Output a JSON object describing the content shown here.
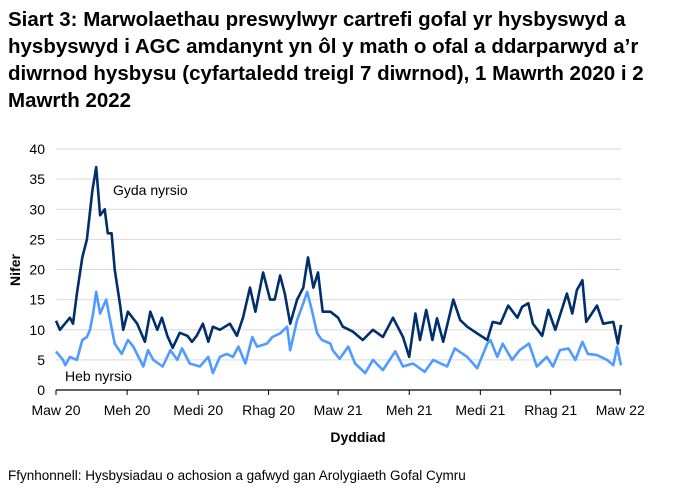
{
  "title": "Siart 3: Marwolaethau preswylwyr cartrefi gofal yr hysbyswyd a hysbyswyd i AGC amdanynt yn ôl y math o ofal a ddarparwyd a’r diwrnod hysbysu (cyfartaledd treigl 7 diwrnod), 1 Mawrth 2020 i 2 Mawrth 2022",
  "source": "Ffynhonnell: Hysbysiadau o achosion a gafwyd gan Arolygiaeth Gofal Cymru",
  "chart_data": {
    "type": "line",
    "title": "Siart 3: Marwolaethau preswylwyr cartrefi gofal yr hysbyswyd a hysbyswyd i AGC amdanynt yn ôl y math o ofal a ddarparwyd a’r diwrnod hysbysu (cyfartaledd treigl 7 diwrnod), 1 Mawrth 2020 i 2 Mawrth 2022",
    "xlabel": "Dyddiad",
    "ylabel": "Nifer",
    "xlim": [
      "2020-03-01",
      "2022-03-02"
    ],
    "ylim": [
      0,
      40
    ],
    "grid": true,
    "legend": "none",
    "yticks": [
      0,
      5,
      10,
      15,
      20,
      25,
      30,
      35,
      40
    ],
    "xticks": [
      {
        "date": "2020-03-01",
        "label": "Maw 20"
      },
      {
        "date": "2020-06-01",
        "label": "Meh 20"
      },
      {
        "date": "2020-09-01",
        "label": "Medi 20"
      },
      {
        "date": "2020-12-01",
        "label": "Rhag 20"
      },
      {
        "date": "2021-03-01",
        "label": "Maw 21"
      },
      {
        "date": "2021-06-01",
        "label": "Meh 21"
      },
      {
        "date": "2021-09-01",
        "label": "Medi 21"
      },
      {
        "date": "2021-12-01",
        "label": "Rhag 21"
      },
      {
        "date": "2022-03-01",
        "label": "Maw 22"
      }
    ],
    "series": [
      {
        "name": "Gyda nyrsio",
        "color": "#002F6C",
        "points": [
          [
            "2020-03-01",
            11.5
          ],
          [
            "2020-03-06",
            10
          ],
          [
            "2020-03-19",
            12
          ],
          [
            "2020-03-23",
            11
          ],
          [
            "2020-03-28",
            16
          ],
          [
            "2020-04-04",
            22
          ],
          [
            "2020-04-10",
            25
          ],
          [
            "2020-04-17",
            33
          ],
          [
            "2020-04-22",
            37
          ],
          [
            "2020-04-27",
            29
          ],
          [
            "2020-05-03",
            30
          ],
          [
            "2020-05-07",
            26
          ],
          [
            "2020-05-12",
            26
          ],
          [
            "2020-05-16",
            20
          ],
          [
            "2020-05-23",
            14
          ],
          [
            "2020-05-27",
            10
          ],
          [
            "2020-06-02",
            13
          ],
          [
            "2020-06-14",
            11
          ],
          [
            "2020-06-24",
            8
          ],
          [
            "2020-07-01",
            13
          ],
          [
            "2020-07-10",
            10
          ],
          [
            "2020-07-16",
            12
          ],
          [
            "2020-07-23",
            9
          ],
          [
            "2020-07-30",
            7
          ],
          [
            "2020-08-08",
            9.5
          ],
          [
            "2020-08-18",
            9
          ],
          [
            "2020-08-24",
            8
          ],
          [
            "2020-08-30",
            9
          ],
          [
            "2020-09-07",
            11
          ],
          [
            "2020-09-14",
            8
          ],
          [
            "2020-09-20",
            10.5
          ],
          [
            "2020-09-29",
            10
          ],
          [
            "2020-10-12",
            11
          ],
          [
            "2020-10-21",
            9
          ],
          [
            "2020-10-29",
            12
          ],
          [
            "2020-11-07",
            17
          ],
          [
            "2020-11-14",
            13
          ],
          [
            "2020-11-24",
            19.5
          ],
          [
            "2020-12-03",
            15
          ],
          [
            "2020-12-09",
            15
          ],
          [
            "2020-12-16",
            19
          ],
          [
            "2020-12-22",
            16
          ],
          [
            "2020-12-29",
            11
          ],
          [
            "2021-01-07",
            15
          ],
          [
            "2021-01-15",
            17
          ],
          [
            "2021-01-21",
            22
          ],
          [
            "2021-01-28",
            17
          ],
          [
            "2021-02-03",
            19.5
          ],
          [
            "2021-02-09",
            13
          ],
          [
            "2021-02-19",
            13
          ],
          [
            "2021-03-01",
            12
          ],
          [
            "2021-03-07",
            10.5
          ],
          [
            "2021-03-20",
            9.7
          ],
          [
            "2021-04-02",
            8.3
          ],
          [
            "2021-04-15",
            10
          ],
          [
            "2021-04-28",
            8.8
          ],
          [
            "2021-05-11",
            12
          ],
          [
            "2021-05-24",
            8.8
          ],
          [
            "2021-06-01",
            5.5
          ],
          [
            "2021-06-09",
            12.7
          ],
          [
            "2021-06-15",
            8.3
          ],
          [
            "2021-06-23",
            13.3
          ],
          [
            "2021-07-01",
            8.3
          ],
          [
            "2021-07-07",
            11.9
          ],
          [
            "2021-07-15",
            8
          ],
          [
            "2021-07-28",
            15
          ],
          [
            "2021-08-06",
            11.6
          ],
          [
            "2021-08-15",
            10.5
          ],
          [
            "2021-08-28",
            9.4
          ],
          [
            "2021-09-10",
            8.3
          ],
          [
            "2021-09-17",
            11.3
          ],
          [
            "2021-09-27",
            11
          ],
          [
            "2021-10-07",
            14
          ],
          [
            "2021-10-19",
            12
          ],
          [
            "2021-10-25",
            13.8
          ],
          [
            "2021-11-02",
            14.4
          ],
          [
            "2021-11-08",
            11
          ],
          [
            "2021-11-20",
            9
          ],
          [
            "2021-11-28",
            13.3
          ],
          [
            "2021-12-07",
            10
          ],
          [
            "2021-12-22",
            16
          ],
          [
            "2021-12-29",
            12.7
          ],
          [
            "2022-01-04",
            16.6
          ],
          [
            "2022-01-11",
            18.2
          ],
          [
            "2022-01-16",
            11.3
          ],
          [
            "2022-01-30",
            14
          ],
          [
            "2022-02-07",
            11
          ],
          [
            "2022-02-20",
            11.3
          ],
          [
            "2022-02-26",
            7.7
          ],
          [
            "2022-03-02",
            10.8
          ]
        ]
      },
      {
        "name": "Heb nyrsio",
        "color": "#4F9BFF",
        "points": [
          [
            "2020-03-01",
            6.4
          ],
          [
            "2020-03-10",
            5
          ],
          [
            "2020-03-13",
            4.1
          ],
          [
            "2020-03-19",
            5.5
          ],
          [
            "2020-03-28",
            5
          ],
          [
            "2020-04-04",
            8.3
          ],
          [
            "2020-04-10",
            8.8
          ],
          [
            "2020-04-14",
            10
          ],
          [
            "2020-04-18",
            12.7
          ],
          [
            "2020-04-22",
            16.3
          ],
          [
            "2020-04-27",
            12.7
          ],
          [
            "2020-05-05",
            15
          ],
          [
            "2020-05-10",
            11.6
          ],
          [
            "2020-05-16",
            7.7
          ],
          [
            "2020-05-25",
            6
          ],
          [
            "2020-06-02",
            8.3
          ],
          [
            "2020-06-09",
            7.2
          ],
          [
            "2020-06-22",
            3.9
          ],
          [
            "2020-06-28",
            6.6
          ],
          [
            "2020-07-05",
            5
          ],
          [
            "2020-07-17",
            3.9
          ],
          [
            "2020-07-27",
            6.6
          ],
          [
            "2020-08-05",
            5
          ],
          [
            "2020-08-11",
            6.9
          ],
          [
            "2020-08-21",
            4.4
          ],
          [
            "2020-09-03",
            3.9
          ],
          [
            "2020-09-14",
            5.5
          ],
          [
            "2020-09-20",
            2.8
          ],
          [
            "2020-09-29",
            5.5
          ],
          [
            "2020-10-08",
            6
          ],
          [
            "2020-10-16",
            5.5
          ],
          [
            "2020-10-23",
            7.2
          ],
          [
            "2020-11-01",
            4.4
          ],
          [
            "2020-11-10",
            8.8
          ],
          [
            "2020-11-16",
            7.2
          ],
          [
            "2020-11-29",
            7.7
          ],
          [
            "2020-12-06",
            8.8
          ],
          [
            "2020-12-16",
            9.4
          ],
          [
            "2020-12-25",
            10.5
          ],
          [
            "2020-12-29",
            6.6
          ],
          [
            "2021-01-07",
            11.6
          ],
          [
            "2021-01-15",
            14.4
          ],
          [
            "2021-01-20",
            16.3
          ],
          [
            "2021-01-26",
            13.3
          ],
          [
            "2021-02-02",
            9.4
          ],
          [
            "2021-02-08",
            8.3
          ],
          [
            "2021-02-19",
            7.7
          ],
          [
            "2021-02-22",
            6.6
          ],
          [
            "2021-03-01",
            5.5
          ],
          [
            "2021-03-03",
            5.2
          ],
          [
            "2021-03-14",
            7.2
          ],
          [
            "2021-03-23",
            4.4
          ],
          [
            "2021-04-05",
            2.8
          ],
          [
            "2021-04-15",
            5
          ],
          [
            "2021-04-28",
            3.3
          ],
          [
            "2021-05-14",
            6.4
          ],
          [
            "2021-05-24",
            3.9
          ],
          [
            "2021-06-06",
            4.4
          ],
          [
            "2021-06-21",
            3
          ],
          [
            "2021-07-02",
            5
          ],
          [
            "2021-07-20",
            3.9
          ],
          [
            "2021-07-30",
            6.9
          ],
          [
            "2021-08-15",
            5.5
          ],
          [
            "2021-08-28",
            3.6
          ],
          [
            "2021-09-10",
            7.7
          ],
          [
            "2021-09-14",
            8.3
          ],
          [
            "2021-09-23",
            5.5
          ],
          [
            "2021-09-30",
            7.7
          ],
          [
            "2021-10-12",
            5
          ],
          [
            "2021-10-22",
            6.6
          ],
          [
            "2021-11-03",
            7.7
          ],
          [
            "2021-11-13",
            3.9
          ],
          [
            "2021-11-26",
            5.5
          ],
          [
            "2021-12-04",
            3.9
          ],
          [
            "2021-12-13",
            6.6
          ],
          [
            "2021-12-24",
            6.9
          ],
          [
            "2022-01-02",
            5
          ],
          [
            "2022-01-11",
            8
          ],
          [
            "2022-01-18",
            6
          ],
          [
            "2022-01-30",
            5.8
          ],
          [
            "2022-02-12",
            5
          ],
          [
            "2022-02-20",
            4.1
          ],
          [
            "2022-02-25",
            7.2
          ],
          [
            "2022-03-02",
            4.1
          ]
        ]
      }
    ]
  }
}
